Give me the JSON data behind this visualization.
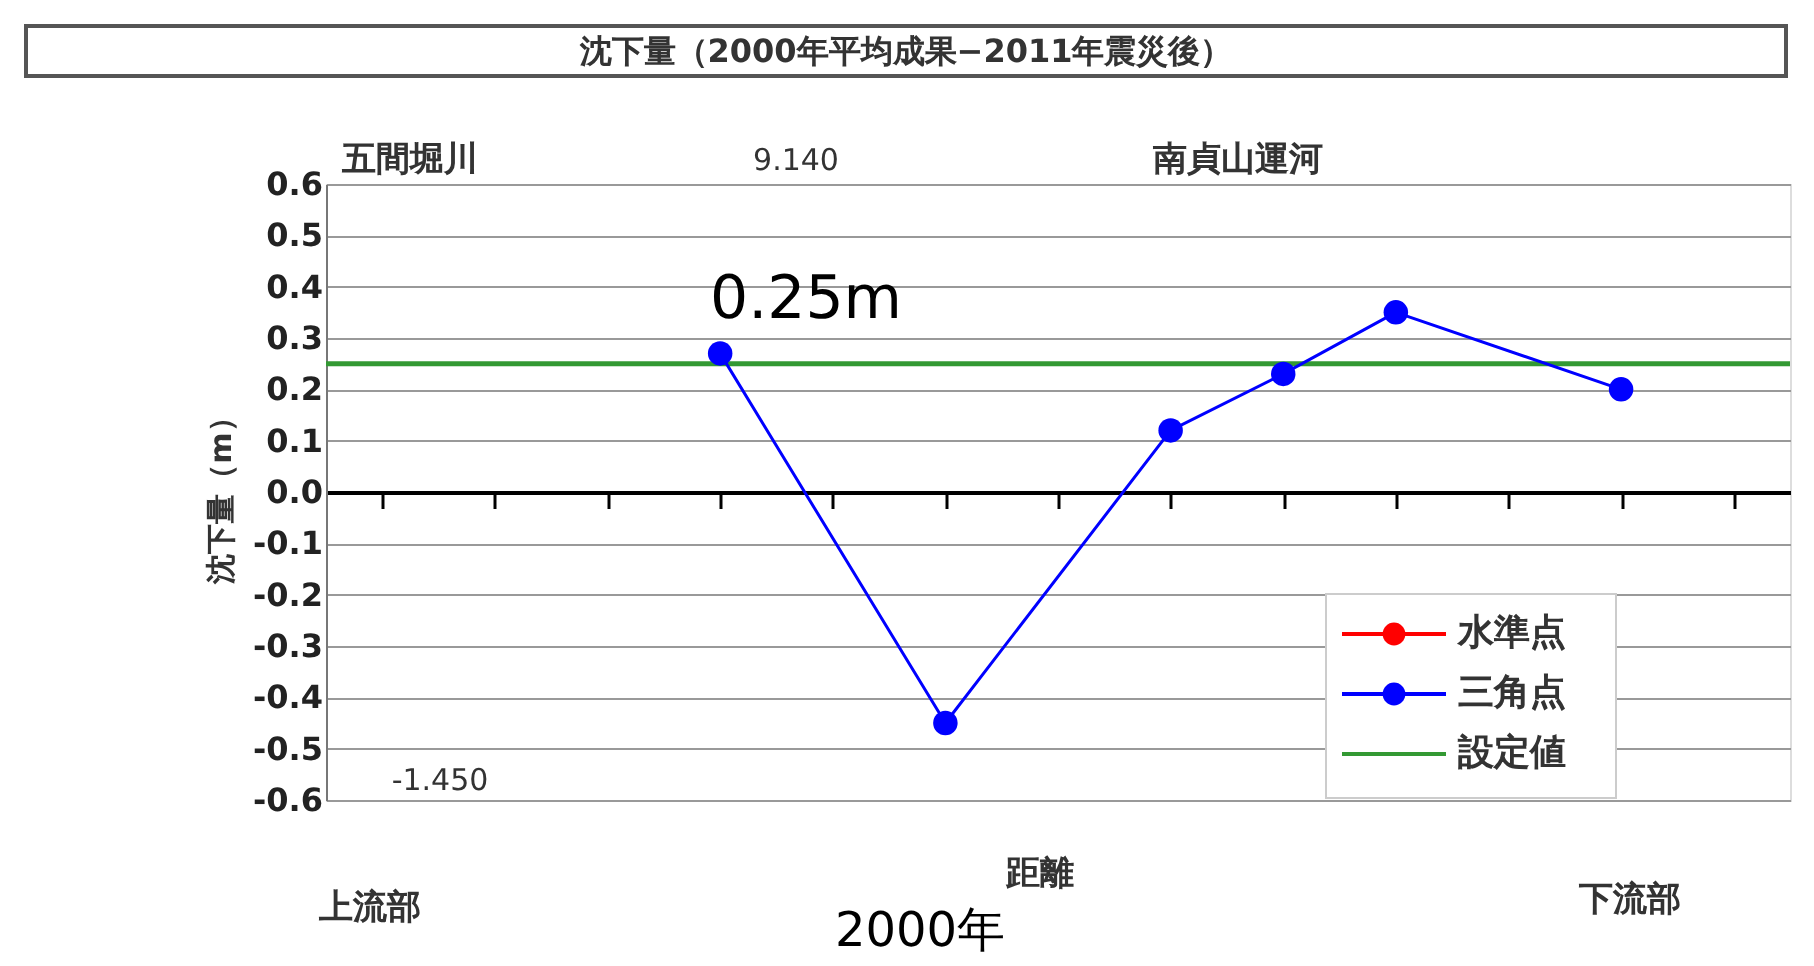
{
  "chart_data": {
    "type": "line",
    "title": "沈下量（2000年平均成果−2011年震災後）",
    "xlabel": "距離",
    "ylabel": "沈下量（m）",
    "categories": [
      null,
      null,
      null,
      null,
      null,
      null,
      null,
      null,
      null,
      null,
      null,
      null,
      null
    ],
    "series": [
      {
        "name": "水準点",
        "color": "#ff0000",
        "values": [
          null,
          null,
          null,
          null,
          null,
          null,
          null,
          null,
          null,
          null,
          null,
          null,
          null
        ]
      },
      {
        "name": "三角点",
        "color": "#0000ff",
        "values": [
          null,
          null,
          null,
          0.27,
          null,
          -0.45,
          null,
          0.12,
          0.23,
          0.35,
          null,
          0.2,
          null
        ]
      }
    ],
    "ref_lines": [
      {
        "axis": "y",
        "value": 0.25,
        "label": "設定値",
        "color": "#339933"
      }
    ],
    "ylim": [
      -0.6,
      0.6
    ],
    "yticks": [
      0.6,
      0.5,
      0.4,
      0.3,
      0.2,
      0.1,
      {
        "value": 0,
        "label": "0.0"
      },
      -0.1,
      -0.2,
      -0.3,
      -0.4,
      -0.5,
      -0.6
    ],
    "annotations": [
      "五間堀川",
      "南貞山運河",
      "9.140",
      "-1.450",
      "0.25m",
      "上流部",
      "下流部",
      "2000年"
    ],
    "grid": "y",
    "legend": "bottom right",
    "marker": "circle",
    "line_style": "solid",
    "tick_labels": "y"
  }
}
